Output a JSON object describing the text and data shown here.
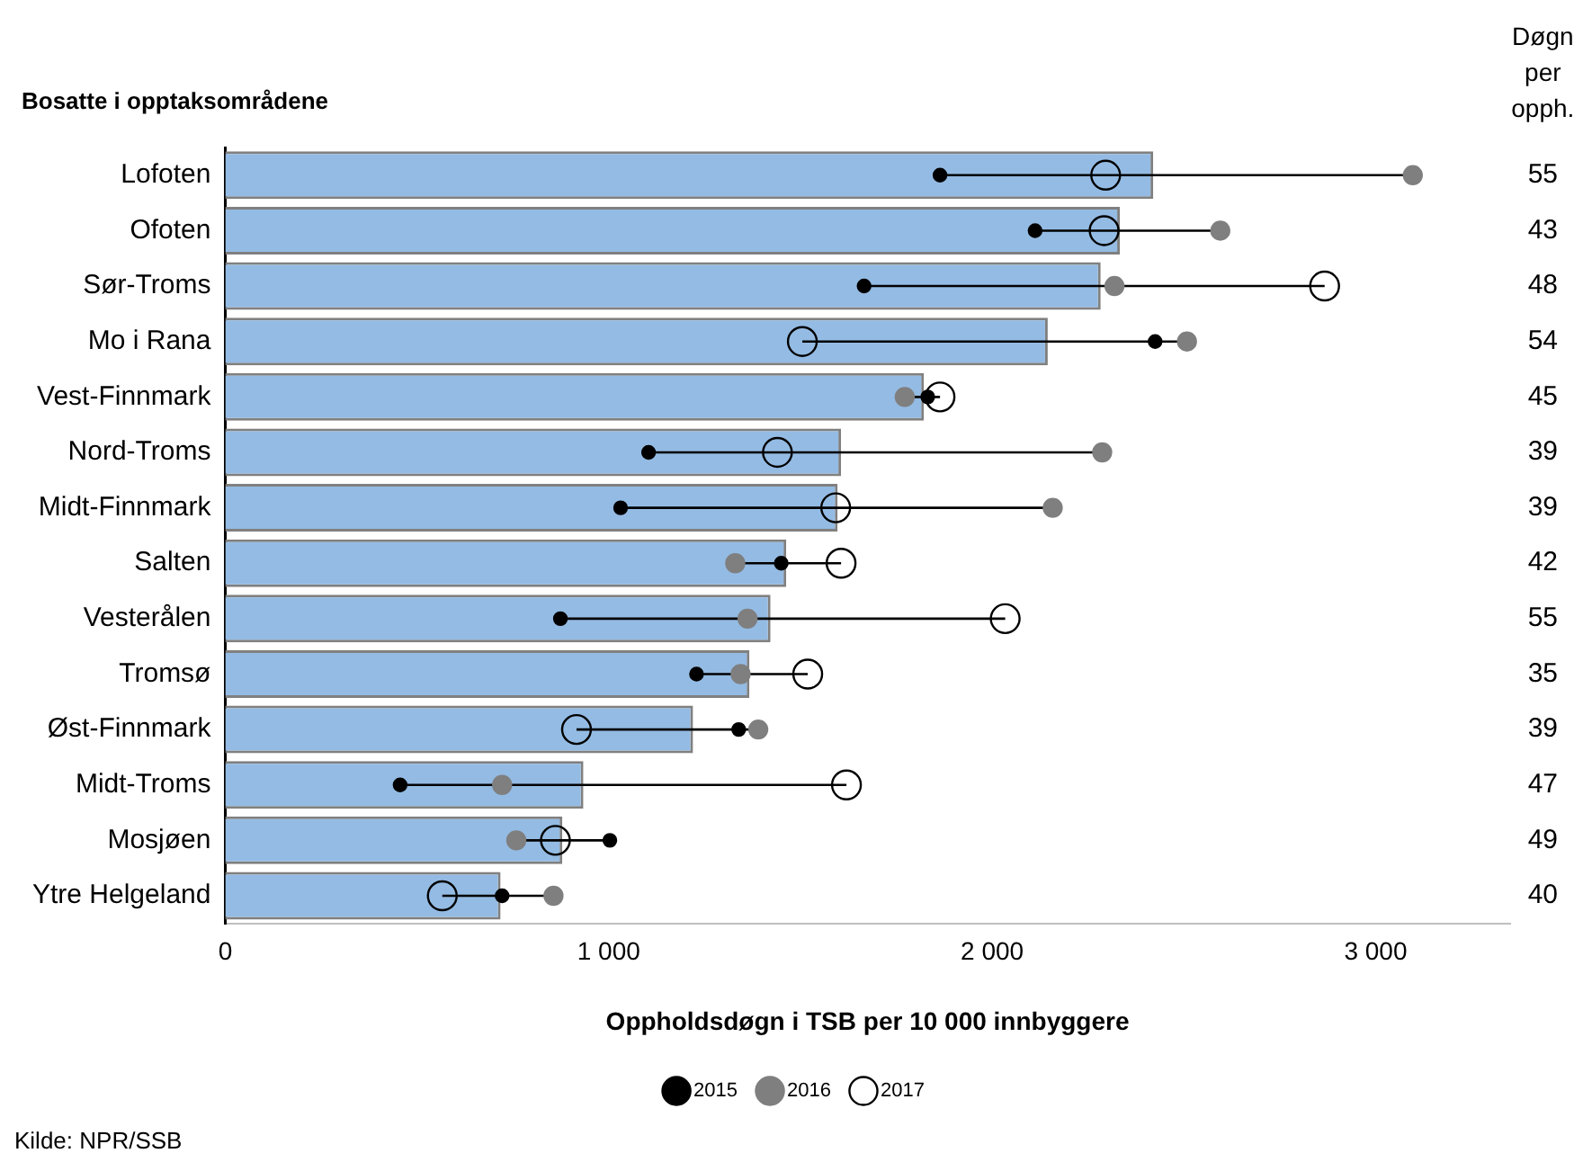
{
  "chart_data": {
    "type": "bar",
    "orientation": "horizontal",
    "ylabel": "Bosatte i opptaksområdene",
    "xlabel": "Oppholdsdøgn i TSB per 10 000 innbyggere",
    "y2label": "Døgn per opph.",
    "categories": [
      "Lofoten",
      "Ofoten",
      "Sør-Troms",
      "Mo i Rana",
      "Vest-Finnmark",
      "Nord-Troms",
      "Midt-Finnmark",
      "Salten",
      "Vesterålen",
      "Tromsø",
      "Øst-Finnmark",
      "Midt-Troms",
      "Mosjøen",
      "Ytre Helgeland"
    ],
    "y2_categories": [
      "55",
      "43",
      "48",
      "54",
      "45",
      "39",
      "39",
      "42",
      "55",
      "35",
      "39",
      "47",
      "49",
      "40"
    ],
    "series": [
      {
        "color": "#94bbe3",
        "values": [
          2420,
          2333,
          2283,
          2145,
          1822,
          1606,
          1597,
          1463,
          1422,
          1367,
          1220,
          934,
          879,
          718
        ]
      },
      {
        "type": "scatter",
        "name": "2015",
        "color": "#000000",
        "marker": "circle",
        "values": [
          1864,
          2112,
          1666,
          2425,
          1832,
          1104,
          1031,
          1450,
          874,
          1229,
          1339,
          456,
          1003,
          722
        ]
      },
      {
        "type": "scatter",
        "name": "2016",
        "color": "#7f7f7f",
        "marker": "circle",
        "values": [
          3097,
          2595,
          2319,
          2508,
          1772,
          2287,
          2158,
          1330,
          1362,
          1344,
          1390,
          722,
          759,
          856
        ]
      },
      {
        "type": "scatter",
        "name": "2017",
        "color": "#000000",
        "marker": "circle",
        "values": [
          2296,
          2292,
          2867,
          1505,
          1864,
          1440,
          1592,
          1606,
          2034,
          1519,
          916,
          1620,
          861,
          566
        ]
      }
    ],
    "xlim": [
      0,
      3350
    ],
    "xticks": [
      0,
      {
        "value": 1000,
        "label": "1 000"
      },
      {
        "value": 2000,
        "label": "2 000"
      },
      {
        "value": 3000,
        "label": "3 000"
      }
    ],
    "grid": false,
    "legend": "bottom",
    "annotations": [
      "Kilde: NPR/SSB"
    ]
  }
}
